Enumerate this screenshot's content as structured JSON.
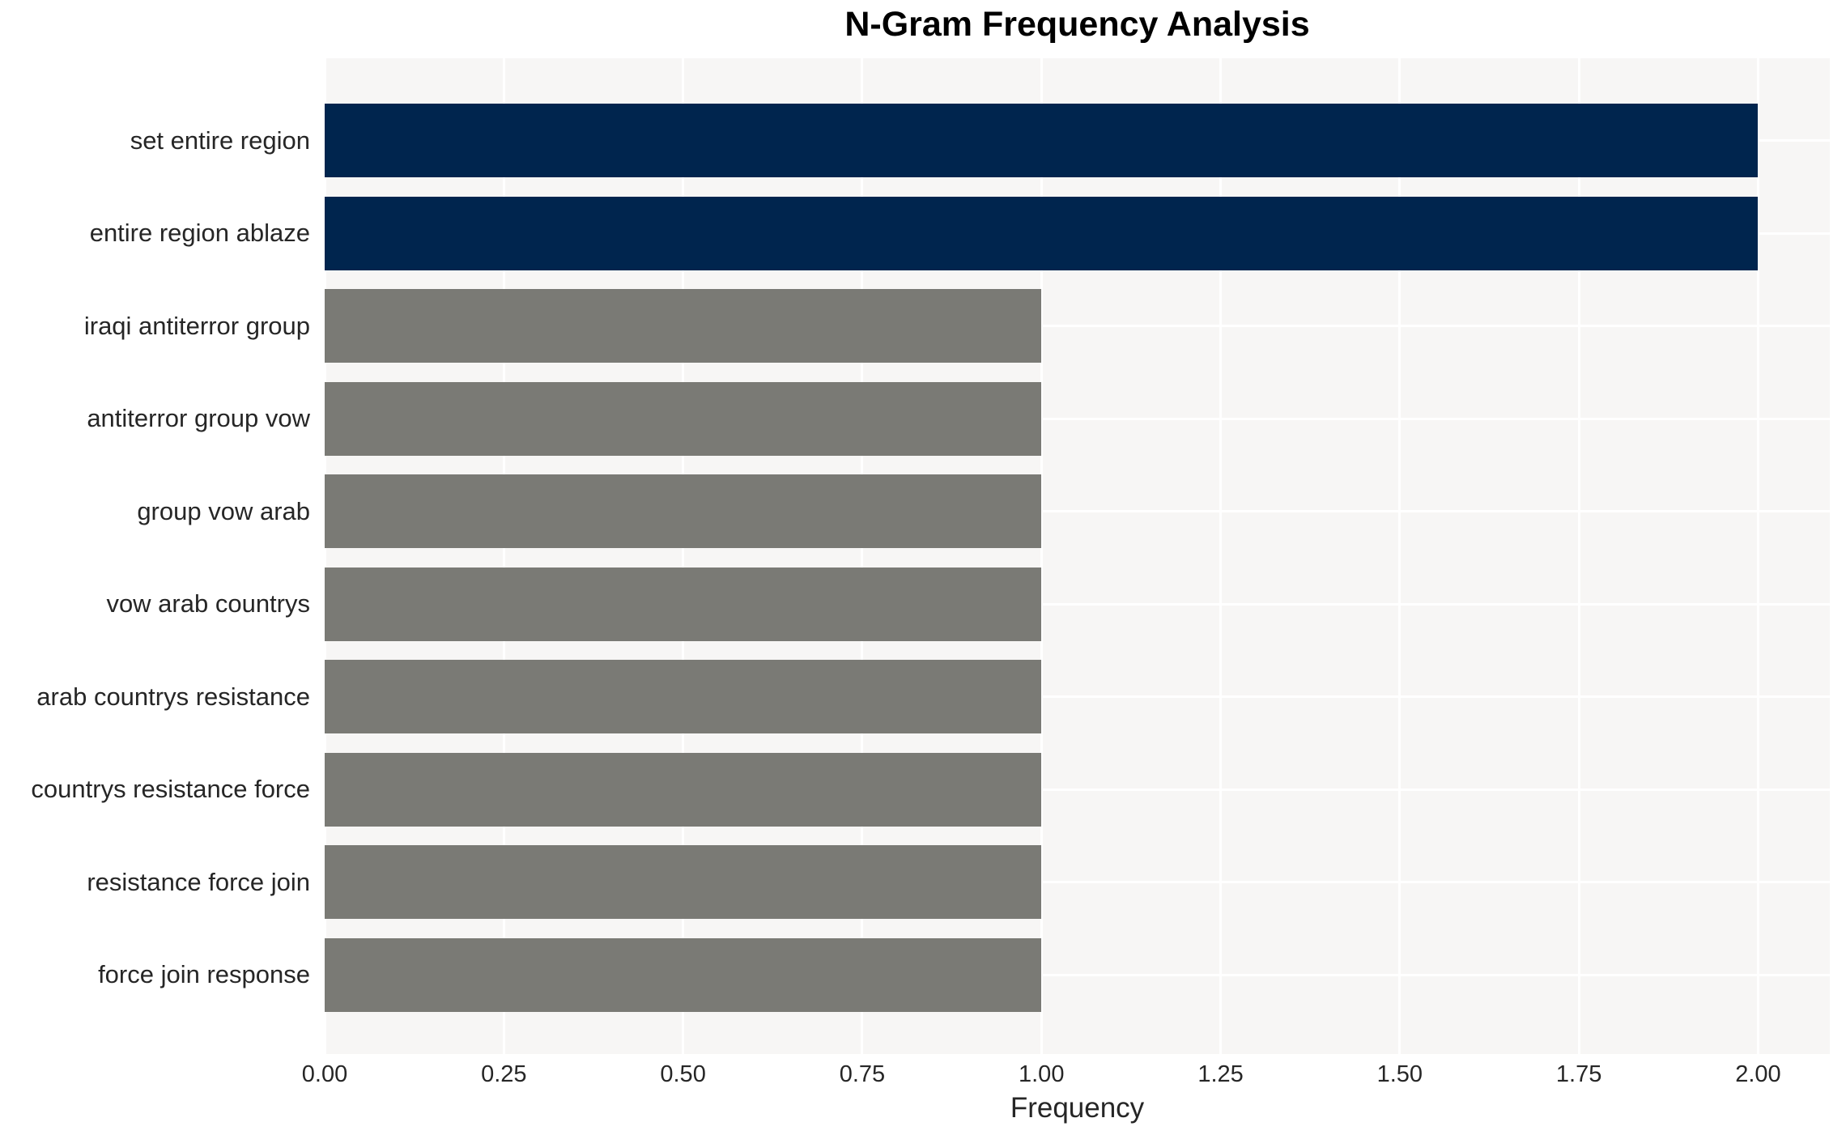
{
  "chart_data": {
    "type": "bar",
    "orientation": "horizontal",
    "title": "N-Gram Frequency Analysis",
    "xlabel": "Frequency",
    "ylabel": "",
    "categories": [
      "set entire region",
      "entire region ablaze",
      "iraqi antiterror group",
      "antiterror group vow",
      "group vow arab",
      "vow arab countrys",
      "arab countrys resistance",
      "countrys resistance force",
      "resistance force join",
      "force join response"
    ],
    "values": [
      2,
      2,
      1,
      1,
      1,
      1,
      1,
      1,
      1,
      1
    ],
    "bar_colors": [
      "#00254e",
      "#00254e",
      "#7a7a75",
      "#7a7a75",
      "#7a7a75",
      "#7a7a75",
      "#7a7a75",
      "#7a7a75",
      "#7a7a75",
      "#7a7a75"
    ],
    "xlim": [
      0,
      2.1
    ],
    "xticks": [
      "0.00",
      "0.25",
      "0.50",
      "0.75",
      "1.00",
      "1.25",
      "1.50",
      "1.75",
      "2.00"
    ],
    "xtick_values": [
      0,
      0.25,
      0.5,
      0.75,
      1.0,
      1.25,
      1.5,
      1.75,
      2.0
    ],
    "grid": true,
    "legend": false,
    "colors": {
      "highlight": "#00254e",
      "default_bar": "#7a7a75",
      "plot_background": "#f7f6f5",
      "gridline": "#ffffff",
      "text": "#262626",
      "title": "#000000"
    }
  }
}
